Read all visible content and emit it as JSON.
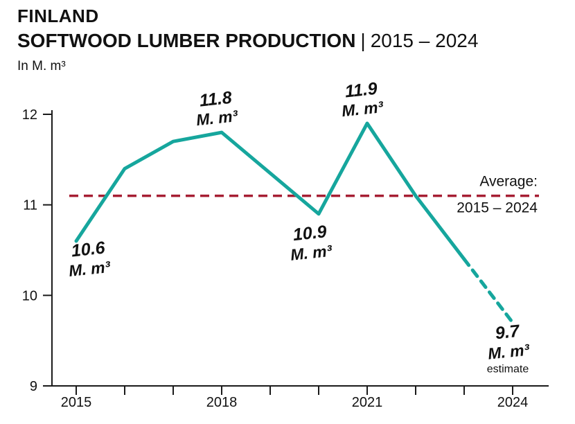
{
  "header": {
    "country": "FINLAND",
    "title": "SOFTWOOD LUMBER PRODUCTION",
    "separator": "|",
    "range": "2015 – 2024",
    "unit": "In M. m³"
  },
  "chart_data": {
    "type": "line",
    "title": "Finland softwood lumber production 2015 – 2024",
    "ylabel": "In M. m³",
    "x": [
      2015,
      2016,
      2017,
      2018,
      2019,
      2020,
      2021,
      2022,
      2023,
      2024
    ],
    "series": [
      {
        "name": "Softwood lumber production (M. m³)",
        "values": [
          10.6,
          11.4,
          11.7,
          11.8,
          11.35,
          10.9,
          11.9,
          11.1,
          10.4,
          9.7
        ]
      }
    ],
    "solid_until_index": 8,
    "estimate_dashed": true,
    "ylim": [
      9,
      12
    ],
    "yticks": [
      9,
      10,
      11,
      12
    ],
    "xticks_labeled": [
      2015,
      2018,
      2021,
      2024
    ],
    "average": {
      "value": 11.1,
      "label_line1": "Average:",
      "label_line2": "2015 – 2024"
    },
    "annotations": [
      {
        "x": 2015,
        "value_label": "10.6",
        "unit_label": "M. m³",
        "placement": "below-right"
      },
      {
        "x": 2018,
        "value_label": "11.8",
        "unit_label": "M. m³",
        "placement": "above"
      },
      {
        "x": 2020,
        "value_label": "10.9",
        "unit_label": "M. m³",
        "placement": "below"
      },
      {
        "x": 2021,
        "value_label": "11.9",
        "unit_label": "M. m³",
        "placement": "above"
      },
      {
        "x": 2024,
        "value_label": "9.7",
        "unit_label": "M. m³",
        "placement": "below-left",
        "note": "estimate"
      }
    ],
    "line_color": "#16a69d",
    "average_color": "#a61e33",
    "axis_color": "#1a1a1a"
  }
}
